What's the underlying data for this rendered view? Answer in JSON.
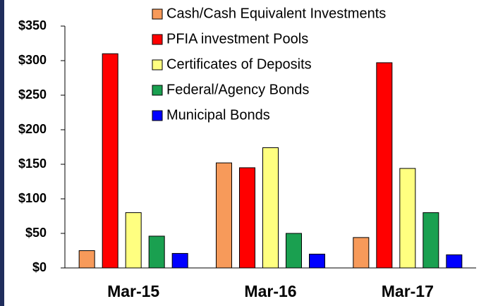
{
  "chart_data": {
    "type": "bar",
    "categories": [
      "Mar-15",
      "Mar-16",
      "Mar-17"
    ],
    "series": [
      {
        "name": "Cash/Cash Equivalent Investments",
        "color": "#f79a5a",
        "values": [
          25,
          152,
          44
        ]
      },
      {
        "name": "PFIA investment Pools",
        "color": "#ff0000",
        "values": [
          310,
          145,
          297
        ]
      },
      {
        "name": "Certificates of Deposits",
        "color": "#ffff80",
        "values": [
          80,
          174,
          144
        ]
      },
      {
        "name": "Federal/Agency Bonds",
        "color": "#1aa050",
        "values": [
          46,
          50,
          80
        ]
      },
      {
        "name": "Municipal Bonds",
        "color": "#0000ff",
        "values": [
          21,
          20,
          19
        ]
      }
    ],
    "ylim": [
      0,
      350
    ],
    "yticks": [
      {
        "value": 0,
        "label": "$0"
      },
      {
        "value": 50,
        "label": "$50"
      },
      {
        "value": 100,
        "label": "$100"
      },
      {
        "value": 150,
        "label": "$150"
      },
      {
        "value": 200,
        "label": "$200"
      },
      {
        "value": 250,
        "label": "$250"
      },
      {
        "value": 300,
        "label": "$300"
      },
      {
        "value": 350,
        "label": "$350"
      }
    ],
    "legend": "top-right"
  }
}
